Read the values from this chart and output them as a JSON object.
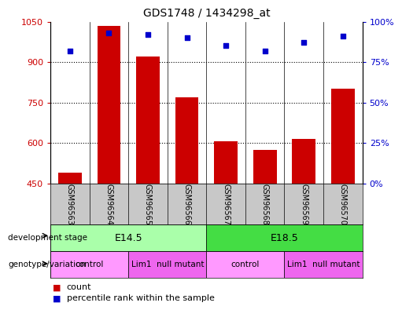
{
  "title": "GDS1748 / 1434298_at",
  "samples": [
    "GSM96563",
    "GSM96564",
    "GSM96565",
    "GSM96566",
    "GSM96567",
    "GSM96568",
    "GSM96569",
    "GSM96570"
  ],
  "counts": [
    490,
    1035,
    920,
    770,
    605,
    575,
    615,
    800
  ],
  "percentiles": [
    82,
    93,
    92,
    90,
    85,
    82,
    87,
    91
  ],
  "ylim_left": [
    450,
    1050
  ],
  "ylim_right": [
    0,
    100
  ],
  "yticks_left": [
    450,
    600,
    750,
    900,
    1050
  ],
  "yticks_right": [
    0,
    25,
    50,
    75,
    100
  ],
  "grid_values": [
    600,
    750,
    900
  ],
  "dev_stages": [
    {
      "label": "E14.5",
      "start": 0,
      "end": 4,
      "color": "#AAFFAA"
    },
    {
      "label": "E18.5",
      "start": 4,
      "end": 8,
      "color": "#44DD44"
    }
  ],
  "genotypes": [
    {
      "label": "control",
      "start": 0,
      "end": 2,
      "color": "#FF99FF"
    },
    {
      "label": "Lim1  null mutant",
      "start": 2,
      "end": 4,
      "color": "#EE66EE"
    },
    {
      "label": "control",
      "start": 4,
      "end": 6,
      "color": "#FF99FF"
    },
    {
      "label": "Lim1  null mutant",
      "start": 6,
      "end": 8,
      "color": "#EE66EE"
    }
  ],
  "bar_color": "#CC0000",
  "dot_color": "#0000CC",
  "tick_color_left": "#CC0000",
  "tick_color_right": "#0000CC",
  "sample_bg_color": "#C8C8C8",
  "dev_stage_label": "development stage",
  "genotype_label": "genotype/variation",
  "legend_count_color": "#CC0000",
  "legend_pct_color": "#0000CC"
}
